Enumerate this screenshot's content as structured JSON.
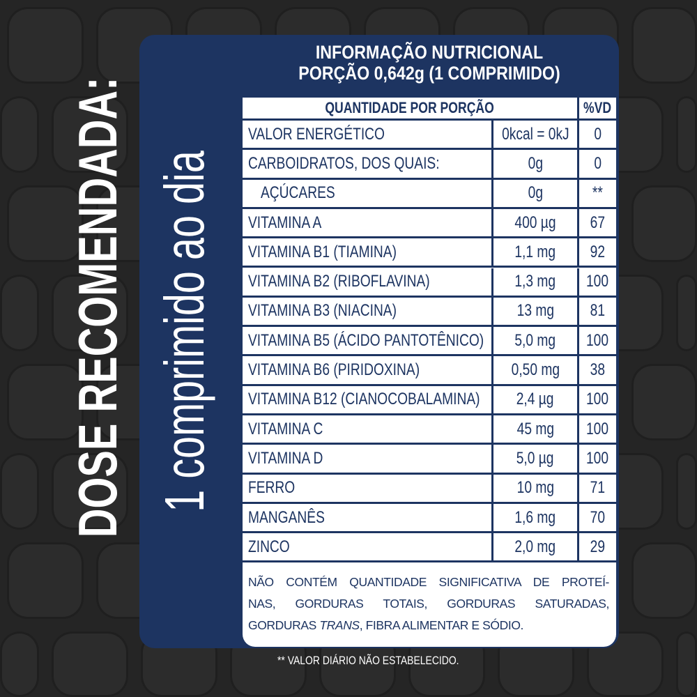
{
  "colors": {
    "background": "#252525",
    "panel": "#1d3461",
    "table": "#ffffff",
    "text_dark": "#1d3461"
  },
  "dose_label": "DOSE RECOMENDADA:",
  "dose_value": "1 comprimido ao dia",
  "title": {
    "line1": "INFORMAÇÃO NUTRICIONAL",
    "line2": "PORÇÃO 0,642g (1 COMPRIMIDO)"
  },
  "table": {
    "header": {
      "quantity": "QUANTIDADE POR PORÇÃO",
      "vd": "%VD"
    },
    "rows": [
      {
        "name": "VALOR ENERGÉTICO",
        "amount": "0kcal = 0kJ",
        "vd": "0"
      },
      {
        "name": "CARBOIDRATOS, DOS QUAIS:",
        "amount": "0g",
        "vd": "0"
      },
      {
        "name": "AÇÚCARES",
        "amount": "0g",
        "vd": "**"
      },
      {
        "name": "VITAMINA A",
        "amount": "400 µg",
        "vd": "67"
      },
      {
        "name": "VITAMINA B1 (TIAMINA)",
        "amount": "1,1 mg",
        "vd": "92"
      },
      {
        "name": "VITAMINA B2 (RIBOFLAVINA)",
        "amount": "1,3 mg",
        "vd": "100"
      },
      {
        "name": "VITAMINA B3 (NIACINA)",
        "amount": "13 mg",
        "vd": "81"
      },
      {
        "name": "VITAMINA B5 (ÁCIDO PANTOTÊNICO)",
        "amount": "5,0 mg",
        "vd": "100"
      },
      {
        "name": "VITAMINA B6 (PIRIDOXINA)",
        "amount": "0,50 mg",
        "vd": "38"
      },
      {
        "name": "VITAMINA B12 (CIANOCOBALAMINA)",
        "amount": "2,4 µg",
        "vd": "100"
      },
      {
        "name": "VITAMINA C",
        "amount": "45 mg",
        "vd": "100"
      },
      {
        "name": "VITAMINA D",
        "amount": "5,0 µg",
        "vd": "100"
      },
      {
        "name": "FERRO",
        "amount": "10 mg",
        "vd": "71"
      },
      {
        "name": "MANGANÊS",
        "amount": "1,6 mg",
        "vd": "70"
      },
      {
        "name": "ZINCO",
        "amount": "2,0 mg",
        "vd": "29"
      }
    ],
    "note": {
      "line1": "NÃO CONTÉM QUANTIDADE SIGNIFICATIVA DE PROTEÍ-",
      "line2": "NAS, GORDURAS TOTAIS, GORDURAS SATURADAS,",
      "line3_a": "GORDURAS ",
      "line3_italic": "TRANS",
      "line3_b": ", FIBRA ALIMENTAR E SÓDIO."
    }
  },
  "footnote": "** VALOR DIÁRIO NÃO ESTABELECIDO."
}
